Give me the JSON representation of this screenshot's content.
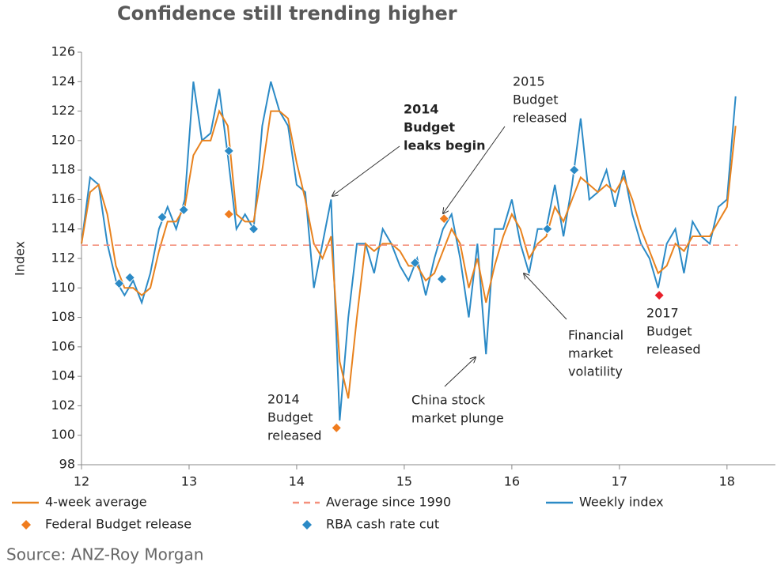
{
  "chart_data": {
    "type": "line",
    "title": "Confidence still trending higher",
    "y_label": "Index",
    "source": "Source: ANZ-Roy Morgan",
    "xlim": [
      12,
      18.45
    ],
    "xticks": [
      12,
      13,
      14,
      15,
      16,
      17,
      18
    ],
    "ylim": [
      98,
      126
    ],
    "yticks": [
      98,
      100,
      102,
      104,
      106,
      108,
      110,
      112,
      114,
      116,
      118,
      120,
      122,
      124,
      126
    ],
    "x": [
      12.0,
      12.08,
      12.16,
      12.24,
      12.32,
      12.4,
      12.48,
      12.56,
      12.64,
      12.72,
      12.8,
      12.88,
      12.96,
      13.04,
      13.12,
      13.2,
      13.28,
      13.36,
      13.44,
      13.52,
      13.6,
      13.68,
      13.76,
      13.84,
      13.92,
      14.0,
      14.08,
      14.16,
      14.24,
      14.32,
      14.4,
      14.48,
      14.56,
      14.64,
      14.72,
      14.8,
      14.88,
      14.96,
      15.04,
      15.12,
      15.2,
      15.28,
      15.36,
      15.44,
      15.52,
      15.6,
      15.68,
      15.76,
      15.84,
      15.92,
      16.0,
      16.08,
      16.16,
      16.24,
      16.32,
      16.4,
      16.48,
      16.56,
      16.64,
      16.72,
      16.8,
      16.88,
      16.96,
      17.04,
      17.12,
      17.2,
      17.28,
      17.36,
      17.44,
      17.52,
      17.6,
      17.68,
      17.76,
      17.84,
      17.92,
      18.0,
      18.08
    ],
    "series": [
      {
        "name": "4-week average",
        "color": "#e8821e",
        "kind": "line",
        "values": [
          113,
          116.5,
          117,
          115,
          111.5,
          110,
          110,
          109.5,
          110,
          112.5,
          114.5,
          114.5,
          115.5,
          119,
          120,
          120,
          122,
          121,
          115,
          114.5,
          114.5,
          118,
          122,
          122,
          121.5,
          118.5,
          116,
          113,
          112,
          113.5,
          105,
          102.5,
          108,
          113,
          112.5,
          113,
          113,
          112.5,
          111.5,
          111.5,
          110.5,
          111,
          112.5,
          114,
          113,
          110,
          112,
          109,
          111.5,
          113.5,
          115,
          114,
          112,
          113,
          113.5,
          115.5,
          114.5,
          116,
          117.5,
          117,
          116.5,
          117,
          116.5,
          117.5,
          116,
          114,
          112.5,
          111,
          111.5,
          113,
          112.5,
          113.5,
          113.5,
          113.5,
          114.5,
          115.5,
          121
        ]
      },
      {
        "name": "Average since 1990",
        "color": "#f4907c",
        "kind": "dashed",
        "x": [
          12,
          18.1
        ],
        "values": [
          112.9,
          112.9
        ]
      },
      {
        "name": "Weekly index",
        "color": "#2b8ac6",
        "kind": "line",
        "values": [
          113,
          117.5,
          117,
          113,
          110.5,
          109.5,
          110.5,
          109,
          111,
          114,
          115.5,
          114,
          116,
          124,
          120,
          120.5,
          123.5,
          119,
          114,
          115,
          114,
          121,
          124,
          122,
          121,
          117,
          116.5,
          110,
          113,
          116,
          101,
          108,
          113,
          113,
          111,
          114,
          113,
          111.5,
          110.5,
          112,
          109.5,
          112,
          114,
          115,
          112,
          108,
          113,
          105.5,
          114,
          114,
          116,
          113,
          111,
          114,
          114,
          117,
          113.5,
          117,
          121.5,
          116,
          116.5,
          118,
          115.5,
          118,
          115,
          113,
          112,
          110,
          113,
          114,
          111,
          114.5,
          113.5,
          113,
          115.5,
          116,
          123
        ]
      },
      {
        "name": "Federal Budget release",
        "color": "#f07c1e",
        "kind": "diamond",
        "point_colors": [
          "#f07c1e",
          "#f07c1e",
          "#f07c1e",
          "#e8202a"
        ],
        "x": [
          13.37,
          14.37,
          15.37,
          17.37
        ],
        "values": [
          115,
          100.5,
          114.7,
          109.5
        ]
      },
      {
        "name": "RBA cash rate cut",
        "color": "#2b8ac6",
        "kind": "diamond",
        "x": [
          12.35,
          12.45,
          12.75,
          12.95,
          13.37,
          13.6,
          15.1,
          15.35,
          16.33,
          16.58
        ],
        "values": [
          110.3,
          110.7,
          114.8,
          115.3,
          119.3,
          114,
          111.7,
          110.6,
          114,
          118
        ]
      }
    ],
    "annotations": [
      {
        "lines": [
          "2014",
          "Budget",
          "leaks begin"
        ],
        "bold": true
      },
      {
        "lines": [
          "2015",
          "Budget",
          "released"
        ],
        "bold": false
      },
      {
        "lines": [
          "Financial",
          "market",
          "volatility"
        ],
        "bold": false
      },
      {
        "lines": [
          "2017",
          "Budget",
          "released"
        ],
        "bold": false
      },
      {
        "lines": [
          "China stock",
          "market plunge"
        ],
        "bold": false
      },
      {
        "lines": [
          "2014",
          "Budget",
          "released"
        ],
        "bold": false
      }
    ]
  }
}
